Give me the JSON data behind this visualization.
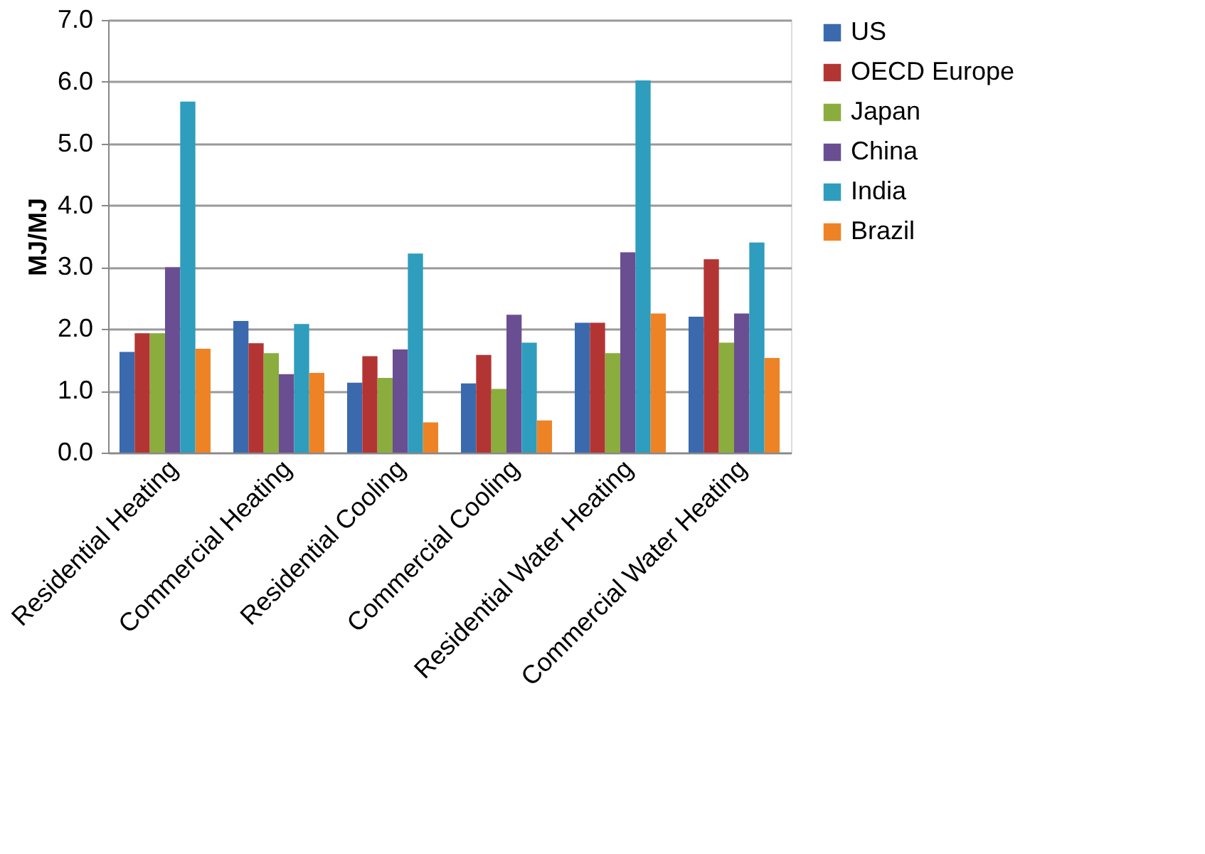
{
  "chart_data": {
    "type": "bar",
    "ylabel": "MJ/MJ",
    "categories": [
      "Residential Heating",
      "Commercial Heating",
      "Residential Cooling",
      "Commercial Cooling",
      "Residential Water Heating",
      "Commercial Water Heating"
    ],
    "series": [
      {
        "name": "US",
        "color": "#3a6aad",
        "values": [
          1.63,
          2.13,
          1.13,
          1.12,
          2.1,
          2.2
        ]
      },
      {
        "name": "OECD Europe",
        "color": "#b33533",
        "values": [
          1.93,
          1.77,
          1.56,
          1.58,
          2.1,
          3.13
        ]
      },
      {
        "name": "Japan",
        "color": "#8aad3e",
        "values": [
          1.93,
          1.61,
          1.21,
          1.03,
          1.61,
          1.78
        ]
      },
      {
        "name": "China",
        "color": "#6a4e92",
        "values": [
          3.0,
          1.27,
          1.67,
          2.23,
          3.24,
          2.25
        ]
      },
      {
        "name": "India",
        "color": "#2f9dbd",
        "values": [
          5.68,
          2.08,
          3.22,
          1.78,
          6.02,
          3.4
        ]
      },
      {
        "name": "Brazil",
        "color": "#ee8326",
        "values": [
          1.68,
          1.29,
          0.49,
          0.52,
          2.25,
          1.53
        ]
      }
    ],
    "ylim": [
      0,
      7
    ],
    "yticks": [
      {
        "value": 0,
        "label": "0.0"
      },
      {
        "value": 1,
        "label": "1.0"
      },
      {
        "value": 2,
        "label": "2.0"
      },
      {
        "value": 3,
        "label": "3.0"
      },
      {
        "value": 4,
        "label": "4.0"
      },
      {
        "value": 5,
        "label": "5.0"
      },
      {
        "value": 6,
        "label": "6.0"
      },
      {
        "value": 7,
        "label": "7.0"
      }
    ],
    "grid": "y",
    "legend": "right"
  }
}
